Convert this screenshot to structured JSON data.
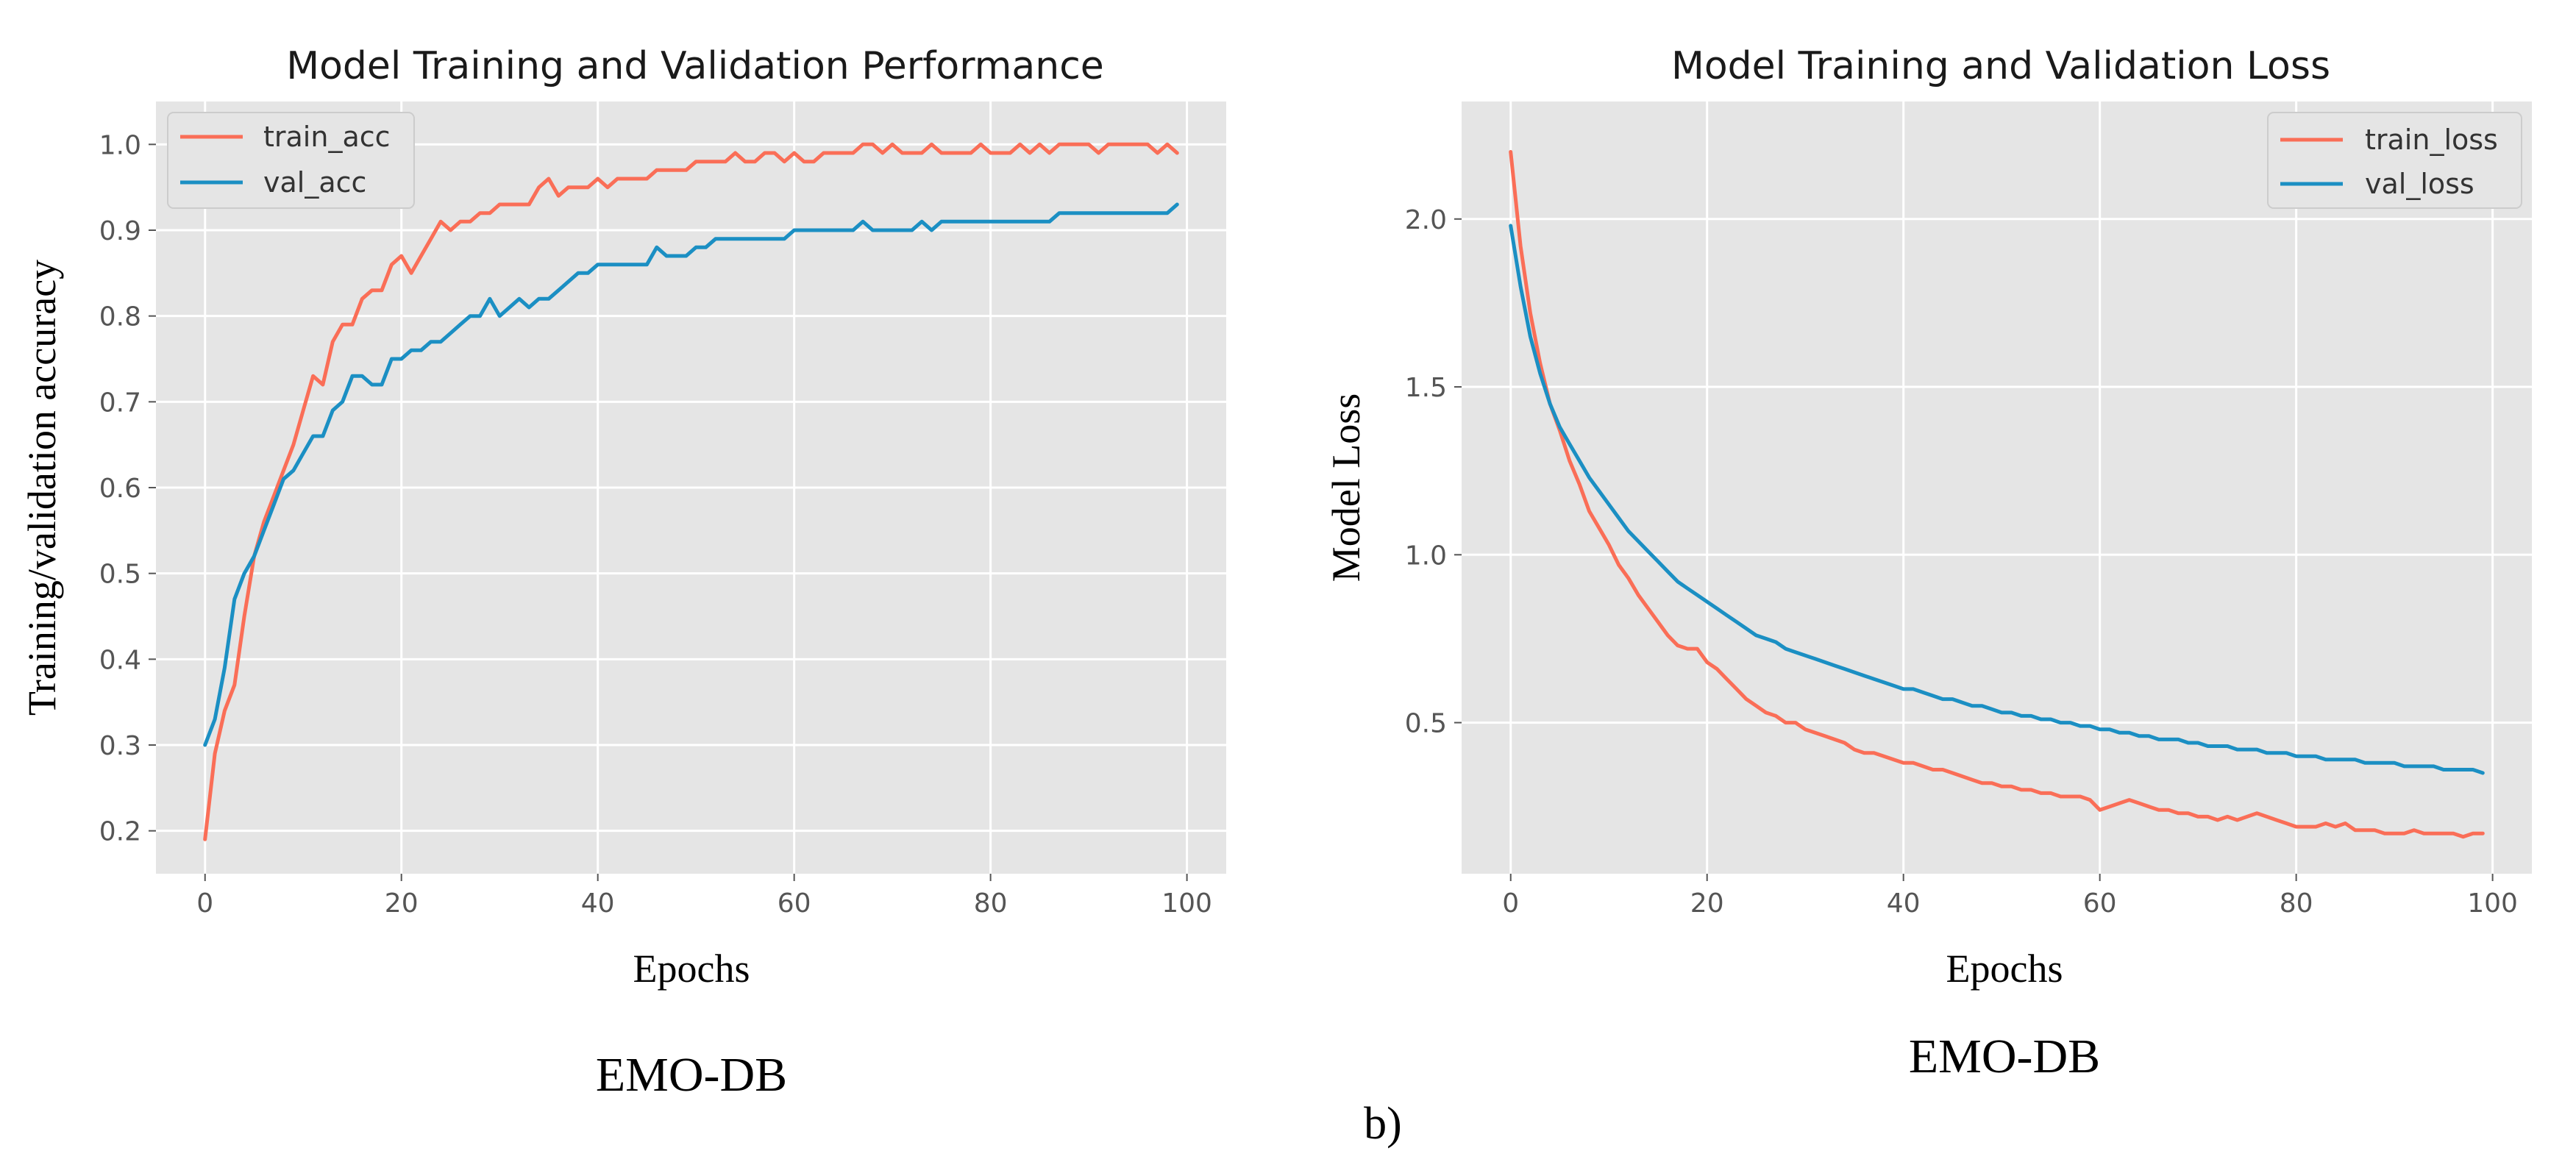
{
  "chart_data": [
    {
      "type": "line",
      "title": "Model Training and Validation Performance",
      "xlabel": "Epochs",
      "ylabel": "Training/validation accuracy",
      "caption": "EMO-DB",
      "xlim": [
        -5,
        104
      ],
      "ylim": [
        0.15,
        1.05
      ],
      "xticks": [
        0,
        20,
        40,
        60,
        80,
        100
      ],
      "xtick_labels": [
        "0",
        "20",
        "40",
        "60",
        "80",
        "100"
      ],
      "yticks": [
        0.2,
        0.3,
        0.4,
        0.5,
        0.6,
        0.7,
        0.8,
        0.9,
        1.0
      ],
      "ytick_labels": [
        "0.2",
        "0.3",
        "0.4",
        "0.5",
        "0.6",
        "0.7",
        "0.8",
        "0.9",
        "1.0"
      ],
      "grid": true,
      "legend_position": "top-left",
      "series": [
        {
          "name": "train_acc",
          "color": "#fa6e57",
          "x": [
            0,
            1,
            2,
            3,
            4,
            5,
            6,
            7,
            8,
            9,
            10,
            11,
            12,
            13,
            14,
            15,
            16,
            17,
            18,
            19,
            20,
            21,
            22,
            23,
            24,
            25,
            26,
            27,
            28,
            29,
            30,
            31,
            32,
            33,
            34,
            35,
            36,
            37,
            38,
            39,
            40,
            41,
            42,
            43,
            44,
            45,
            46,
            47,
            48,
            49,
            50,
            51,
            52,
            53,
            54,
            55,
            56,
            57,
            58,
            59,
            60,
            61,
            62,
            63,
            64,
            65,
            66,
            67,
            68,
            69,
            70,
            71,
            72,
            73,
            74,
            75,
            76,
            77,
            78,
            79,
            80,
            81,
            82,
            83,
            84,
            85,
            86,
            87,
            88,
            89,
            90,
            91,
            92,
            93,
            94,
            95,
            96,
            97,
            98,
            99
          ],
          "values": [
            0.19,
            0.29,
            0.34,
            0.37,
            0.45,
            0.52,
            0.56,
            0.59,
            0.62,
            0.65,
            0.69,
            0.73,
            0.72,
            0.77,
            0.79,
            0.79,
            0.82,
            0.83,
            0.83,
            0.86,
            0.87,
            0.85,
            0.87,
            0.89,
            0.91,
            0.9,
            0.91,
            0.91,
            0.92,
            0.92,
            0.93,
            0.93,
            0.93,
            0.93,
            0.95,
            0.96,
            0.94,
            0.95,
            0.95,
            0.95,
            0.96,
            0.95,
            0.96,
            0.96,
            0.96,
            0.96,
            0.97,
            0.97,
            0.97,
            0.97,
            0.98,
            0.98,
            0.98,
            0.98,
            0.99,
            0.98,
            0.98,
            0.99,
            0.99,
            0.98,
            0.99,
            0.98,
            0.98,
            0.99,
            0.99,
            0.99,
            0.99,
            1.0,
            1.0,
            0.99,
            1.0,
            0.99,
            0.99,
            0.99,
            1.0,
            0.99,
            0.99,
            0.99,
            0.99,
            1.0,
            0.99,
            0.99,
            0.99,
            1.0,
            0.99,
            1.0,
            0.99,
            1.0,
            1.0,
            1.0,
            1.0,
            0.99,
            1.0,
            1.0,
            1.0,
            1.0,
            1.0,
            0.99,
            1.0,
            0.99
          ]
        },
        {
          "name": "val_acc",
          "color": "#1b8fc3",
          "x": [
            0,
            1,
            2,
            3,
            4,
            5,
            6,
            7,
            8,
            9,
            10,
            11,
            12,
            13,
            14,
            15,
            16,
            17,
            18,
            19,
            20,
            21,
            22,
            23,
            24,
            25,
            26,
            27,
            28,
            29,
            30,
            31,
            32,
            33,
            34,
            35,
            36,
            37,
            38,
            39,
            40,
            41,
            42,
            43,
            44,
            45,
            46,
            47,
            48,
            49,
            50,
            51,
            52,
            53,
            54,
            55,
            56,
            57,
            58,
            59,
            60,
            61,
            62,
            63,
            64,
            65,
            66,
            67,
            68,
            69,
            70,
            71,
            72,
            73,
            74,
            75,
            76,
            77,
            78,
            79,
            80,
            81,
            82,
            83,
            84,
            85,
            86,
            87,
            88,
            89,
            90,
            91,
            92,
            93,
            94,
            95,
            96,
            97,
            98,
            99
          ],
          "values": [
            0.3,
            0.33,
            0.39,
            0.47,
            0.5,
            0.52,
            0.55,
            0.58,
            0.61,
            0.62,
            0.64,
            0.66,
            0.66,
            0.69,
            0.7,
            0.73,
            0.73,
            0.72,
            0.72,
            0.75,
            0.75,
            0.76,
            0.76,
            0.77,
            0.77,
            0.78,
            0.79,
            0.8,
            0.8,
            0.82,
            0.8,
            0.81,
            0.82,
            0.81,
            0.82,
            0.82,
            0.83,
            0.84,
            0.85,
            0.85,
            0.86,
            0.86,
            0.86,
            0.86,
            0.86,
            0.86,
            0.88,
            0.87,
            0.87,
            0.87,
            0.88,
            0.88,
            0.89,
            0.89,
            0.89,
            0.89,
            0.89,
            0.89,
            0.89,
            0.89,
            0.9,
            0.9,
            0.9,
            0.9,
            0.9,
            0.9,
            0.9,
            0.91,
            0.9,
            0.9,
            0.9,
            0.9,
            0.9,
            0.91,
            0.9,
            0.91,
            0.91,
            0.91,
            0.91,
            0.91,
            0.91,
            0.91,
            0.91,
            0.91,
            0.91,
            0.91,
            0.91,
            0.92,
            0.92,
            0.92,
            0.92,
            0.92,
            0.92,
            0.92,
            0.92,
            0.92,
            0.92,
            0.92,
            0.92,
            0.93
          ]
        }
      ]
    },
    {
      "type": "line",
      "title": "Model Training and Validation Loss",
      "xlabel": "Epochs",
      "ylabel": "Model Loss",
      "caption": "EMO-DB",
      "xlim": [
        -5,
        104
      ],
      "ylim": [
        0.05,
        2.35
      ],
      "xticks": [
        0,
        20,
        40,
        60,
        80,
        100
      ],
      "xtick_labels": [
        "0",
        "20",
        "40",
        "60",
        "80",
        "100"
      ],
      "yticks": [
        0.5,
        1.0,
        1.5,
        2.0
      ],
      "ytick_labels": [
        "0.5",
        "1.0",
        "1.5",
        "2.0"
      ],
      "grid": true,
      "legend_position": "top-right",
      "series": [
        {
          "name": "train_loss",
          "color": "#fa6e57",
          "x": [
            0,
            1,
            2,
            3,
            4,
            5,
            6,
            7,
            8,
            9,
            10,
            11,
            12,
            13,
            14,
            15,
            16,
            17,
            18,
            19,
            20,
            21,
            22,
            23,
            24,
            25,
            26,
            27,
            28,
            29,
            30,
            31,
            32,
            33,
            34,
            35,
            36,
            37,
            38,
            39,
            40,
            41,
            42,
            43,
            44,
            45,
            46,
            47,
            48,
            49,
            50,
            51,
            52,
            53,
            54,
            55,
            56,
            57,
            58,
            59,
            60,
            61,
            62,
            63,
            64,
            65,
            66,
            67,
            68,
            69,
            70,
            71,
            72,
            73,
            74,
            75,
            76,
            77,
            78,
            79,
            80,
            81,
            82,
            83,
            84,
            85,
            86,
            87,
            88,
            89,
            90,
            91,
            92,
            93,
            94,
            95,
            96,
            97,
            98,
            99
          ],
          "values": [
            2.2,
            1.92,
            1.72,
            1.57,
            1.45,
            1.37,
            1.28,
            1.21,
            1.13,
            1.08,
            1.03,
            0.97,
            0.93,
            0.88,
            0.84,
            0.8,
            0.76,
            0.73,
            0.72,
            0.72,
            0.68,
            0.66,
            0.63,
            0.6,
            0.57,
            0.55,
            0.53,
            0.52,
            0.5,
            0.5,
            0.48,
            0.47,
            0.46,
            0.45,
            0.44,
            0.42,
            0.41,
            0.41,
            0.4,
            0.39,
            0.38,
            0.38,
            0.37,
            0.36,
            0.36,
            0.35,
            0.34,
            0.33,
            0.32,
            0.32,
            0.31,
            0.31,
            0.3,
            0.3,
            0.29,
            0.29,
            0.28,
            0.28,
            0.28,
            0.27,
            0.24,
            0.25,
            0.26,
            0.27,
            0.26,
            0.25,
            0.24,
            0.24,
            0.23,
            0.23,
            0.22,
            0.22,
            0.21,
            0.22,
            0.21,
            0.22,
            0.23,
            0.22,
            0.21,
            0.2,
            0.19,
            0.19,
            0.19,
            0.2,
            0.19,
            0.2,
            0.18,
            0.18,
            0.18,
            0.17,
            0.17,
            0.17,
            0.18,
            0.17,
            0.17,
            0.17,
            0.17,
            0.16,
            0.17,
            0.17
          ]
        },
        {
          "name": "val_loss",
          "color": "#1b8fc3",
          "x": [
            0,
            1,
            2,
            3,
            4,
            5,
            6,
            7,
            8,
            9,
            10,
            11,
            12,
            13,
            14,
            15,
            16,
            17,
            18,
            19,
            20,
            21,
            22,
            23,
            24,
            25,
            26,
            27,
            28,
            29,
            30,
            31,
            32,
            33,
            34,
            35,
            36,
            37,
            38,
            39,
            40,
            41,
            42,
            43,
            44,
            45,
            46,
            47,
            48,
            49,
            50,
            51,
            52,
            53,
            54,
            55,
            56,
            57,
            58,
            59,
            60,
            61,
            62,
            63,
            64,
            65,
            66,
            67,
            68,
            69,
            70,
            71,
            72,
            73,
            74,
            75,
            76,
            77,
            78,
            79,
            80,
            81,
            82,
            83,
            84,
            85,
            86,
            87,
            88,
            89,
            90,
            91,
            92,
            93,
            94,
            95,
            96,
            97,
            98,
            99
          ],
          "values": [
            1.98,
            1.8,
            1.65,
            1.54,
            1.45,
            1.38,
            1.33,
            1.28,
            1.23,
            1.19,
            1.15,
            1.11,
            1.07,
            1.04,
            1.01,
            0.98,
            0.95,
            0.92,
            0.9,
            0.88,
            0.86,
            0.84,
            0.82,
            0.8,
            0.78,
            0.76,
            0.75,
            0.74,
            0.72,
            0.71,
            0.7,
            0.69,
            0.68,
            0.67,
            0.66,
            0.65,
            0.64,
            0.63,
            0.62,
            0.61,
            0.6,
            0.6,
            0.59,
            0.58,
            0.57,
            0.57,
            0.56,
            0.55,
            0.55,
            0.54,
            0.53,
            0.53,
            0.52,
            0.52,
            0.51,
            0.51,
            0.5,
            0.5,
            0.49,
            0.49,
            0.48,
            0.48,
            0.47,
            0.47,
            0.46,
            0.46,
            0.45,
            0.45,
            0.45,
            0.44,
            0.44,
            0.43,
            0.43,
            0.43,
            0.42,
            0.42,
            0.42,
            0.41,
            0.41,
            0.41,
            0.4,
            0.4,
            0.4,
            0.39,
            0.39,
            0.39,
            0.39,
            0.38,
            0.38,
            0.38,
            0.38,
            0.37,
            0.37,
            0.37,
            0.37,
            0.36,
            0.36,
            0.36,
            0.36,
            0.35
          ]
        }
      ]
    }
  ],
  "figure": {
    "sublabel": "b)"
  }
}
